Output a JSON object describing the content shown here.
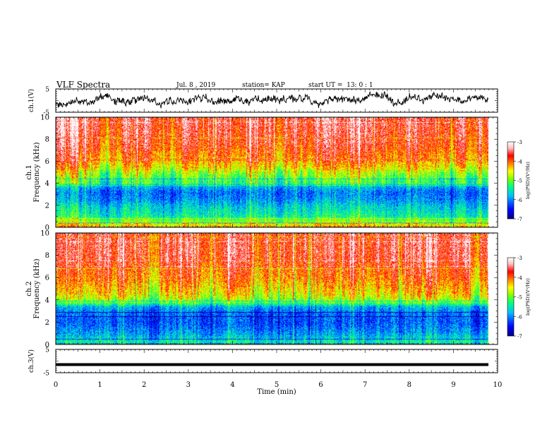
{
  "header": {
    "title": "VLF Spectra",
    "date": "Jul. 8 , 2019",
    "station": "station= KAP",
    "start": "start UT =  13: 0 : 1"
  },
  "chart_data": [
    {
      "type": "line",
      "panel": "ch1-waveform",
      "ylabel": "ch.1(V)",
      "ylim": [
        -5,
        5
      ],
      "y_ticks": [
        "5",
        "-5"
      ],
      "note": "dense noisy waveform near 0 V"
    },
    {
      "type": "heatmap",
      "panel": "ch1-spectrogram",
      "ylabel": "Frequency (kHz)",
      "channel_label": "ch.1",
      "ylim": [
        0,
        10
      ],
      "y_ticks": [
        "0",
        "2",
        "4",
        "6",
        "8",
        "10"
      ],
      "colorbar": {
        "label": "log(PSD)(V²/Hz)",
        "ticks": [
          "-3",
          "-4",
          "-5",
          "-6",
          "-7"
        ],
        "range": [
          -7,
          -3
        ],
        "colors": [
          "#000080",
          "#0000ff",
          "#00c0ff",
          "#00ff80",
          "#80ff00",
          "#ffff00",
          "#ff8000",
          "#ff0000",
          "#ffc0c0",
          "#ffffff"
        ]
      },
      "profile_kHz_logpsd": [
        [
          0,
          -4.2
        ],
        [
          0.5,
          -4.8
        ],
        [
          1,
          -5.4
        ],
        [
          2,
          -5.7
        ],
        [
          2.6,
          -6.0
        ],
        [
          3.2,
          -6.1
        ],
        [
          3.6,
          -5.9
        ],
        [
          4.2,
          -5.2
        ],
        [
          5,
          -4.8
        ],
        [
          5.5,
          -4.4
        ],
        [
          6,
          -4.2
        ],
        [
          7,
          -3.9
        ],
        [
          8,
          -3.7
        ],
        [
          10,
          -3.6
        ]
      ]
    },
    {
      "type": "heatmap",
      "panel": "ch2-spectrogram",
      "ylabel": "Frequency (kHz)",
      "channel_label": "ch.2",
      "ylim": [
        0,
        10
      ],
      "y_ticks": [
        "0",
        "2",
        "4",
        "6",
        "8",
        "10"
      ],
      "colorbar": {
        "label": "log(PSD)(V²/Hz)",
        "ticks": [
          "-3",
          "-4",
          "-5",
          "-6",
          "-7"
        ],
        "range": [
          -7,
          -3
        ],
        "colors": [
          "#000080",
          "#0000ff",
          "#00c0ff",
          "#00ff80",
          "#80ff00",
          "#ffff00",
          "#ff8000",
          "#ff0000",
          "#ffc0c0",
          "#ffffff"
        ]
      },
      "profile_kHz_logpsd": [
        [
          0,
          -5.2
        ],
        [
          0.5,
          -5.6
        ],
        [
          1,
          -5.9
        ],
        [
          2,
          -6.2
        ],
        [
          2.8,
          -6.1
        ],
        [
          3.4,
          -5.8
        ],
        [
          3.8,
          -5.0
        ],
        [
          4.4,
          -4.5
        ],
        [
          5,
          -4.3
        ],
        [
          6,
          -4.0
        ],
        [
          7,
          -3.8
        ],
        [
          8,
          -3.6
        ],
        [
          10,
          -3.6
        ]
      ]
    },
    {
      "type": "line",
      "panel": "ch3-waveform",
      "ylabel": "ch.3(V)",
      "ylim": [
        -5,
        5
      ],
      "y_ticks": [
        "5",
        "-5"
      ],
      "values_constant": -1.5
    }
  ],
  "xaxis": {
    "label": "Time (min)",
    "range": [
      0,
      10
    ],
    "ticks": [
      "0",
      "1",
      "2",
      "3",
      "4",
      "5",
      "6",
      "7",
      "8",
      "9",
      "10"
    ]
  }
}
